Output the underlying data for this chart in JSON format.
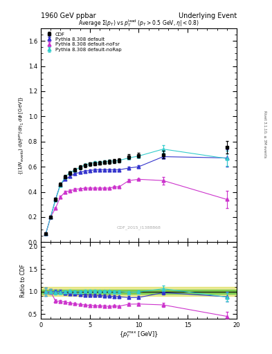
{
  "title_left": "1960 GeV ppbar",
  "title_right": "Underlying Event",
  "plot_title": "Average Σ(p_{T}) vs p_{T}^{lead} (p_{T} > 0.5 GeV, η| < 0.8)",
  "watermark": "CDF_2015_I1388868",
  "right_label": "Rivet 3.1.10, ≥ 3M events",
  "xlabel": "{p_{T}^{max} [GeV]}",
  "ylabel": "{(1/N_{events}) dp_{T}^{sum}/dη_1 dϕ [GeV]}",
  "ylabel_ratio": "Ratio to CDF",
  "xlim": [
    0,
    20
  ],
  "ylim": [
    0,
    1.7
  ],
  "ylim_ratio": [
    0.4,
    2.1
  ],
  "yticks_main": [
    0.0,
    0.2,
    0.4,
    0.6,
    0.8,
    1.0,
    1.2,
    1.4,
    1.6
  ],
  "yticks_ratio": [
    0.5,
    1.0,
    1.5,
    2.0
  ],
  "cdf_x": [
    0.5,
    1.0,
    1.5,
    2.0,
    2.5,
    3.0,
    3.5,
    4.0,
    4.5,
    5.0,
    5.5,
    6.0,
    6.5,
    7.0,
    7.5,
    8.0,
    9.0,
    10.0,
    12.5,
    19.0
  ],
  "cdf_y": [
    0.065,
    0.2,
    0.34,
    0.46,
    0.52,
    0.55,
    0.575,
    0.595,
    0.61,
    0.62,
    0.625,
    0.63,
    0.635,
    0.64,
    0.645,
    0.65,
    0.68,
    0.69,
    0.695,
    0.755
  ],
  "cdf_yerr": [
    0.005,
    0.01,
    0.015,
    0.015,
    0.015,
    0.015,
    0.015,
    0.015,
    0.015,
    0.015,
    0.015,
    0.015,
    0.015,
    0.015,
    0.015,
    0.015,
    0.02,
    0.02,
    0.03,
    0.05
  ],
  "py_default_x": [
    0.5,
    1.0,
    1.5,
    2.0,
    2.5,
    3.0,
    3.5,
    4.0,
    4.5,
    5.0,
    5.5,
    6.0,
    6.5,
    7.0,
    7.5,
    8.0,
    9.0,
    10.0,
    12.5,
    19.0
  ],
  "py_default_y": [
    0.065,
    0.2,
    0.34,
    0.46,
    0.5,
    0.525,
    0.545,
    0.555,
    0.565,
    0.57,
    0.575,
    0.575,
    0.575,
    0.575,
    0.575,
    0.575,
    0.59,
    0.6,
    0.68,
    0.67
  ],
  "py_default_yerr": [
    0.003,
    0.005,
    0.007,
    0.008,
    0.008,
    0.008,
    0.008,
    0.008,
    0.008,
    0.008,
    0.008,
    0.008,
    0.008,
    0.008,
    0.008,
    0.008,
    0.01,
    0.01,
    0.015,
    0.07
  ],
  "py_noFSR_x": [
    0.5,
    1.0,
    1.5,
    2.0,
    2.5,
    3.0,
    3.5,
    4.0,
    4.5,
    5.0,
    5.5,
    6.0,
    6.5,
    7.0,
    7.5,
    8.0,
    9.0,
    10.0,
    12.5,
    19.0
  ],
  "py_noFSR_y": [
    0.065,
    0.2,
    0.27,
    0.36,
    0.4,
    0.41,
    0.42,
    0.425,
    0.43,
    0.43,
    0.43,
    0.43,
    0.43,
    0.43,
    0.44,
    0.44,
    0.49,
    0.5,
    0.49,
    0.34
  ],
  "py_noFSR_yerr": [
    0.003,
    0.005,
    0.007,
    0.008,
    0.008,
    0.008,
    0.008,
    0.008,
    0.008,
    0.008,
    0.008,
    0.008,
    0.008,
    0.008,
    0.008,
    0.008,
    0.01,
    0.01,
    0.03,
    0.07
  ],
  "py_noRap_x": [
    0.5,
    1.0,
    1.5,
    2.0,
    2.5,
    3.0,
    3.5,
    4.0,
    4.5,
    5.0,
    5.5,
    6.0,
    6.5,
    7.0,
    7.5,
    8.0,
    9.0,
    10.0,
    12.5,
    19.0
  ],
  "py_noRap_y": [
    0.065,
    0.2,
    0.335,
    0.455,
    0.52,
    0.555,
    0.575,
    0.595,
    0.615,
    0.625,
    0.635,
    0.635,
    0.64,
    0.645,
    0.645,
    0.65,
    0.67,
    0.685,
    0.74,
    0.665
  ],
  "py_noRap_yerr": [
    0.003,
    0.005,
    0.007,
    0.008,
    0.008,
    0.008,
    0.008,
    0.008,
    0.008,
    0.008,
    0.008,
    0.008,
    0.008,
    0.008,
    0.008,
    0.008,
    0.01,
    0.01,
    0.03,
    0.06
  ],
  "color_cdf": "#000000",
  "color_default": "#3333cc",
  "color_noFSR": "#cc33cc",
  "color_noRap": "#33cccc",
  "band_green": "#00aa00",
  "band_yellow": "#cccc00",
  "alpha_green": 0.4,
  "alpha_yellow": 0.4,
  "green_band_half": 0.05,
  "yellow_band_half": 0.1
}
